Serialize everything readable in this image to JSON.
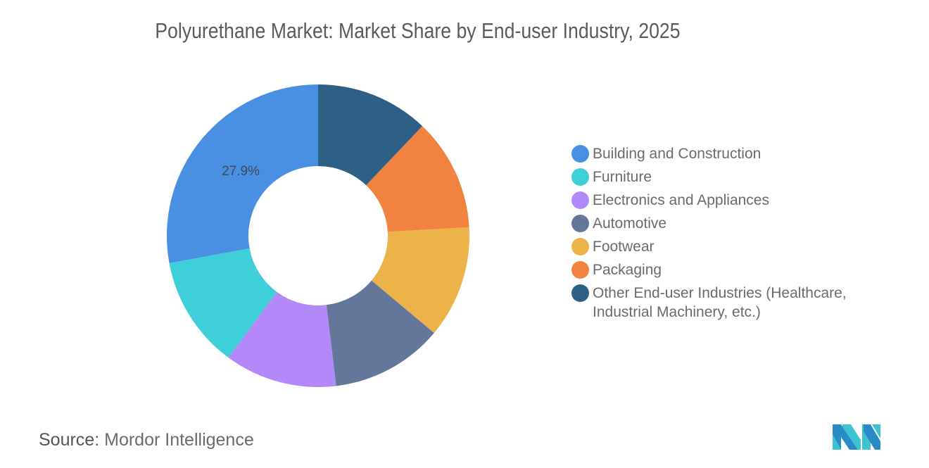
{
  "chart_data": {
    "type": "pie",
    "subtype": "donut",
    "title": "Polyurethane Market: Market Share by End-user Industry, 2025",
    "categories": [
      "Building and Construction",
      "Furniture",
      "Electronics and Appliances",
      "Automotive",
      "Footwear",
      "Packaging",
      "Other End-user Industries (Healthcare, Industrial Machinery, etc.)"
    ],
    "values": [
      27.9,
      12.0,
      12.0,
      12.0,
      12.0,
      12.0,
      12.1
    ],
    "colors": [
      "#4a90e2",
      "#3fcfd9",
      "#b388f9",
      "#647699",
      "#ebb34a",
      "#f18240",
      "#2e5f85"
    ],
    "data_labels": [
      {
        "category": "Building and Construction",
        "text": "27.9%"
      }
    ],
    "legend_position": "right",
    "start_angle_note": "Other End-user Industries starts at 12 o'clock, slices proceed clockwise: Other, Packaging, Footwear, Automotive, Electronics and Appliances, Furniture, Building and Construction"
  },
  "header": {
    "title": "Polyurethane Market: Market Share by End-user Industry, 2025"
  },
  "legend": {
    "items": [
      {
        "label": "Building and Construction",
        "color": "#4a90e2"
      },
      {
        "label": "Furniture",
        "color": "#3fcfd9"
      },
      {
        "label": "Electronics and Appliances",
        "color": "#b388f9"
      },
      {
        "label": "Automotive",
        "color": "#647699"
      },
      {
        "label": "Footwear",
        "color": "#ebb34a"
      },
      {
        "label": "Packaging",
        "color": "#f18240"
      },
      {
        "label": "Other End-user Industries (Healthcare, Industrial Machinery, etc.)",
        "color": "#2e5f85"
      }
    ]
  },
  "footer": {
    "source_label": "Source:",
    "source_value": "Mordor Intelligence",
    "logo": "mordor-intelligence-logo"
  }
}
